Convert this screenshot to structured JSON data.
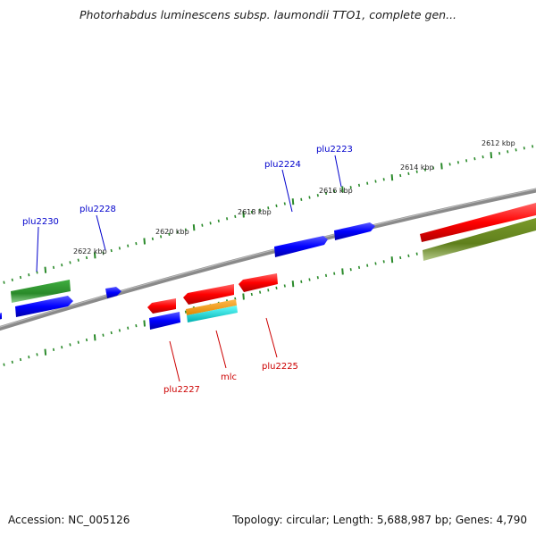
{
  "title": "Photorhabdus luminescens subsp. laumondii TTO1, complete gen...",
  "footer": {
    "accession": "Accession: NC_005126",
    "topology": "Topology: circular; Length: 5,688,987 bp; Genes: 4,790"
  },
  "scale_labels": [
    "2612 kbp",
    "2614 kbp",
    "2616 kbp",
    "2618 kbp",
    "2620 kbp",
    "2622 kbp"
  ],
  "genes_forward": [
    "plu2223",
    "plu2224",
    "plu2228",
    "plu2230"
  ],
  "genes_reverse": [
    "plu2225",
    "mlc",
    "plu2227"
  ],
  "colors": {
    "forward_label": "#0000cc",
    "reverse_label": "#cc0000",
    "cds_forward": "#0000ff",
    "cds_reverse": "#ff0000",
    "gene_green": "#2e8b2e",
    "gene_olive": "#6b8e23",
    "orange_feature": "#ff9900",
    "cyan_feature": "#00cccc",
    "backbone": "#888888",
    "tick": "#2a8a2a"
  }
}
